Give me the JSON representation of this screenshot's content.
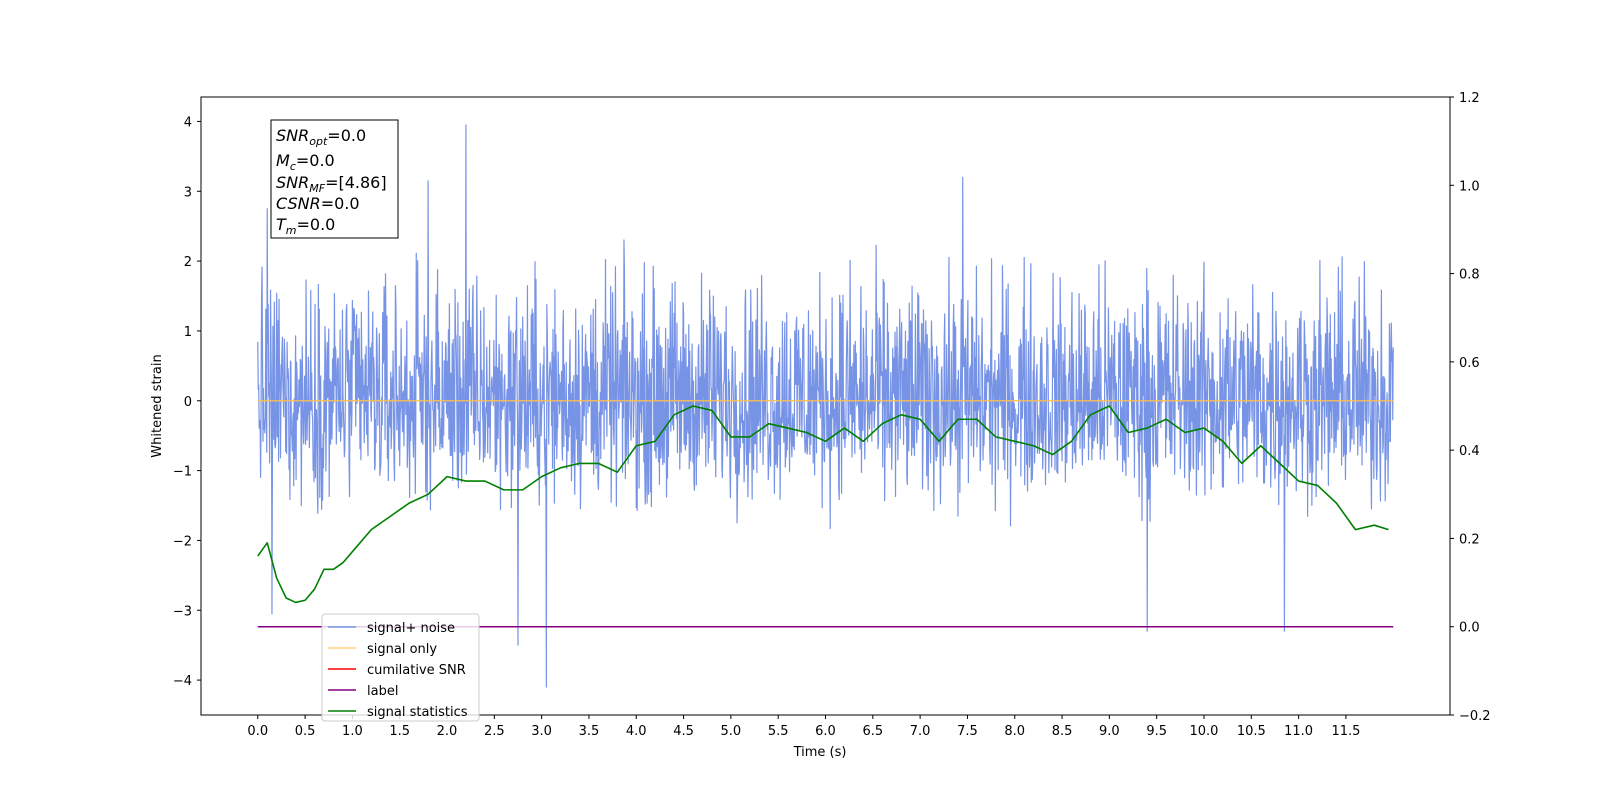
{
  "chart_data": {
    "type": "line",
    "xlabel": "Time (s)",
    "ylabel": "Whitened strain",
    "xlim": [
      -0.6,
      12.6
    ],
    "ylim": [
      -4.5,
      4.35
    ],
    "y2lim": [
      -0.2,
      1.2
    ],
    "x_ticks": [
      0.0,
      0.5,
      1.0,
      1.5,
      2.0,
      2.5,
      3.0,
      3.5,
      4.0,
      4.5,
      5.0,
      5.5,
      6.0,
      6.5,
      7.0,
      7.5,
      8.0,
      8.5,
      9.0,
      9.5,
      10.0,
      10.5,
      11.0,
      11.5
    ],
    "x_tick_labels": [
      "0.0",
      "0.5",
      "1.0",
      "1.5",
      "2.0",
      "2.5",
      "3.0",
      "3.5",
      "4.0",
      "4.5",
      "5.0",
      "5.5",
      "6.0",
      "6.5",
      "7.0",
      "7.5",
      "8.0",
      "8.5",
      "9.0",
      "9.5",
      "10.0",
      "10.5",
      "11.0",
      "11.5"
    ],
    "y_ticks": [
      4,
      3,
      2,
      1,
      0,
      -1,
      -2,
      -3,
      -4
    ],
    "y_tick_labels": [
      "4",
      "3",
      "2",
      "1",
      "0",
      "−1",
      "−2",
      "−3",
      "−4"
    ],
    "y2_ticks": [
      1.2,
      1.0,
      0.8,
      0.6,
      0.4,
      0.2,
      0.0,
      -0.2
    ],
    "y2_tick_labels": [
      "1.2",
      "1.0",
      "0.8",
      "0.6",
      "0.4",
      "0.2",
      "0.0",
      "−0.2"
    ],
    "grid": false,
    "legend_position": "lower-left",
    "series": [
      {
        "name": "signal+ noise",
        "color": "#7793e6",
        "axis": "left",
        "x_range": [
          0.0,
          12.0
        ],
        "typical_range": [
          -2.0,
          2.5
        ],
        "peaks": [
          [
            0.1,
            2.75
          ],
          [
            0.15,
            -3.05
          ],
          [
            1.8,
            3.15
          ],
          [
            2.2,
            3.95
          ],
          [
            2.75,
            -3.5
          ],
          [
            3.05,
            -4.1
          ],
          [
            7.45,
            3.2
          ],
          [
            9.4,
            -3.3
          ],
          [
            10.85,
            -3.3
          ]
        ]
      },
      {
        "name": "signal only",
        "color": "#ffbf4d",
        "axis": "left",
        "x": [
          0.0,
          12.0
        ],
        "values": [
          0.0,
          0.0
        ]
      },
      {
        "name": "cumilative SNR",
        "color": "#ff0000",
        "axis": "right"
      },
      {
        "name": "label",
        "color": "#800080",
        "axis": "right",
        "x": [
          0.0,
          12.0
        ],
        "values": [
          0.0,
          0.0
        ]
      },
      {
        "name": "signal statistics",
        "color": "#008000",
        "axis": "right",
        "x": [
          0.0,
          0.1,
          0.2,
          0.3,
          0.4,
          0.5,
          0.6,
          0.7,
          0.8,
          0.9,
          1.0,
          1.2,
          1.4,
          1.6,
          1.8,
          2.0,
          2.2,
          2.4,
          2.6,
          2.8,
          3.0,
          3.2,
          3.4,
          3.6,
          3.8,
          4.0,
          4.2,
          4.4,
          4.6,
          4.8,
          5.0,
          5.2,
          5.4,
          5.6,
          5.8,
          6.0,
          6.2,
          6.4,
          6.6,
          6.8,
          7.0,
          7.2,
          7.4,
          7.6,
          7.8,
          8.0,
          8.2,
          8.4,
          8.6,
          8.8,
          9.0,
          9.2,
          9.4,
          9.6,
          9.8,
          10.0,
          10.2,
          10.4,
          10.6,
          10.8,
          11.0,
          11.2,
          11.4,
          11.6,
          11.8,
          11.95
        ],
        "values": [
          0.16,
          0.19,
          0.11,
          0.065,
          0.055,
          0.06,
          0.085,
          0.13,
          0.13,
          0.145,
          0.17,
          0.22,
          0.25,
          0.28,
          0.3,
          0.34,
          0.33,
          0.33,
          0.31,
          0.31,
          0.34,
          0.36,
          0.37,
          0.37,
          0.35,
          0.41,
          0.42,
          0.48,
          0.5,
          0.49,
          0.43,
          0.43,
          0.46,
          0.45,
          0.44,
          0.42,
          0.45,
          0.42,
          0.46,
          0.48,
          0.47,
          0.42,
          0.47,
          0.47,
          0.43,
          0.42,
          0.41,
          0.39,
          0.42,
          0.48,
          0.5,
          0.44,
          0.45,
          0.47,
          0.44,
          0.45,
          0.42,
          0.37,
          0.41,
          0.37,
          0.33,
          0.32,
          0.28,
          0.22,
          0.23,
          0.22
        ]
      }
    ],
    "annotation_box": [
      {
        "sym": "SNR",
        "sub": "opt",
        "rest": "=0.0"
      },
      {
        "sym": "M",
        "sub": "c",
        "rest": "=0.0"
      },
      {
        "sym": "SNR",
        "sub": "MF",
        "rest": "=[4.86]"
      },
      {
        "sym": "CSNR",
        "sub": "",
        "rest": "=0.0"
      },
      {
        "sym": "T",
        "sub": "m",
        "rest": "=0.0"
      }
    ]
  }
}
